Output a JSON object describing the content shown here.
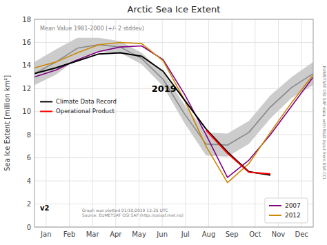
{
  "chart_data": {
    "type": "line",
    "title": "Arctic Sea Ice Extent",
    "ylabel": "Sea Ice Extent [million km²]",
    "x": [
      0,
      0.9230769230769231,
      1.8461538461538463,
      2.769230769230769,
      3.6923076923076925,
      4.615384615384615,
      5.538461538461538,
      6.461538461538462,
      7.384615385,
      8.307692307692308,
      9.23076923076923,
      10.153846153846153,
      11.076923076923077,
      12
    ],
    "xlim": [
      0,
      12
    ],
    "xticks": [
      {
        "value": 0.5,
        "label": "Jan"
      },
      {
        "value": 1.5,
        "label": "Feb"
      },
      {
        "value": 2.5,
        "label": "Mar"
      },
      {
        "value": 3.5,
        "label": "Apr"
      },
      {
        "value": 4.5,
        "label": "May"
      },
      {
        "value": 5.5,
        "label": "Jun"
      },
      {
        "value": 6.5,
        "label": "Jul"
      },
      {
        "value": 7.5,
        "label": "Aug"
      },
      {
        "value": 8.5,
        "label": "Sep"
      },
      {
        "value": 9.5,
        "label": "Oct"
      },
      {
        "value": 10.5,
        "label": "Nov"
      },
      {
        "value": 11.5,
        "label": "Dec"
      }
    ],
    "ylim": [
      0,
      18
    ],
    "yticks": [
      0,
      2,
      4,
      6,
      8,
      10,
      12,
      14,
      16,
      18
    ],
    "grid": true,
    "legend": "lower right",
    "series": [
      {
        "name": "Mean Value 1981-2000 (+/- 2 stddev)",
        "color": "#888888",
        "band_color": "#cccccc",
        "values": [
          13.3,
          14.3,
          15.5,
          15.8,
          15.6,
          14.6,
          12.8,
          9.8,
          7.2,
          7.1,
          8.2,
          10.4,
          12.1,
          13.3
        ],
        "upper": [
          14.3,
          15.4,
          16.4,
          16.4,
          16.1,
          15.1,
          13.4,
          10.6,
          8.2,
          8.1,
          9.2,
          11.4,
          13.0,
          14.3
        ],
        "lower": [
          12.3,
          13.2,
          14.6,
          15.2,
          15.1,
          14.1,
          12.2,
          9.0,
          6.2,
          6.1,
          7.2,
          9.4,
          11.2,
          12.3
        ]
      },
      {
        "name": "2007",
        "color": "#800080",
        "values": [
          13.0,
          13.6,
          14.5,
          15.2,
          15.6,
          15.7,
          14.5,
          11.5,
          8.0,
          4.3,
          5.8,
          8.0,
          10.5,
          13.0
        ]
      },
      {
        "name": "2012",
        "color": "#cc8800",
        "values": [
          13.8,
          14.3,
          15.1,
          15.8,
          16.0,
          15.9,
          14.4,
          11.0,
          7.0,
          3.85,
          5.5,
          8.2,
          10.8,
          13.2
        ]
      },
      {
        "name": "Climate Data Record",
        "color": "#000000",
        "values": [
          13.3,
          13.8,
          14.4,
          15.0,
          15.1,
          14.8,
          13.5,
          11.0,
          8.5,
          6.5,
          4.8,
          4.5,
          null,
          null
        ]
      },
      {
        "name": "Operational Product",
        "color": "#ff0000",
        "values": [
          null,
          null,
          null,
          null,
          null,
          null,
          null,
          null,
          8.4,
          6.4,
          4.75,
          4.6,
          null,
          null
        ]
      }
    ],
    "annotations": [
      "2019",
      "v2",
      "Graph was plotted 01/10/2019 12:35 UTC\nSource: EUMETSAT OSI SAF (http://osisaf.met.no)",
      "EUMETSAT OSI SAF data, with R&D input from ESA CCI."
    ]
  }
}
